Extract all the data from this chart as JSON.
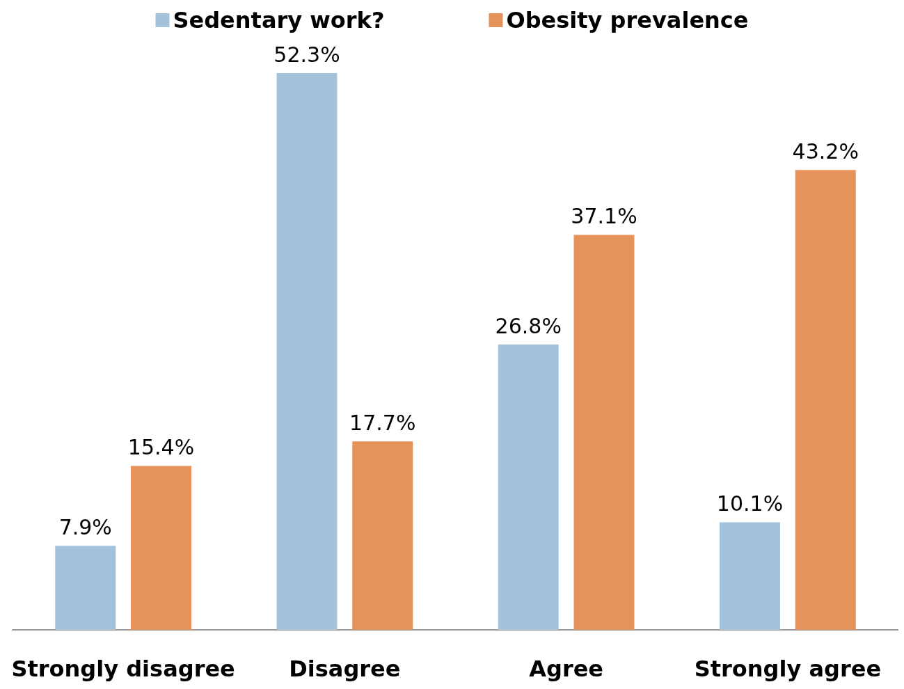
{
  "chart_data": {
    "type": "bar",
    "categories": [
      "Strongly disagree",
      "Disagree",
      "Agree",
      "Strongly agree"
    ],
    "series": [
      {
        "name": "Sedentary work?",
        "color": "#a5c2db",
        "values": [
          7.9,
          52.3,
          26.8,
          10.1
        ],
        "value_labels": [
          "7.9%",
          "52.3%",
          "26.8%",
          "10.1%"
        ]
      },
      {
        "name": "Obesity prevalence",
        "color": "#e5935a",
        "values": [
          15.4,
          17.7,
          37.1,
          43.2
        ],
        "value_labels": [
          "15.4%",
          "17.7%",
          "37.1%",
          "43.2%"
        ]
      }
    ],
    "legend": "top"
  }
}
